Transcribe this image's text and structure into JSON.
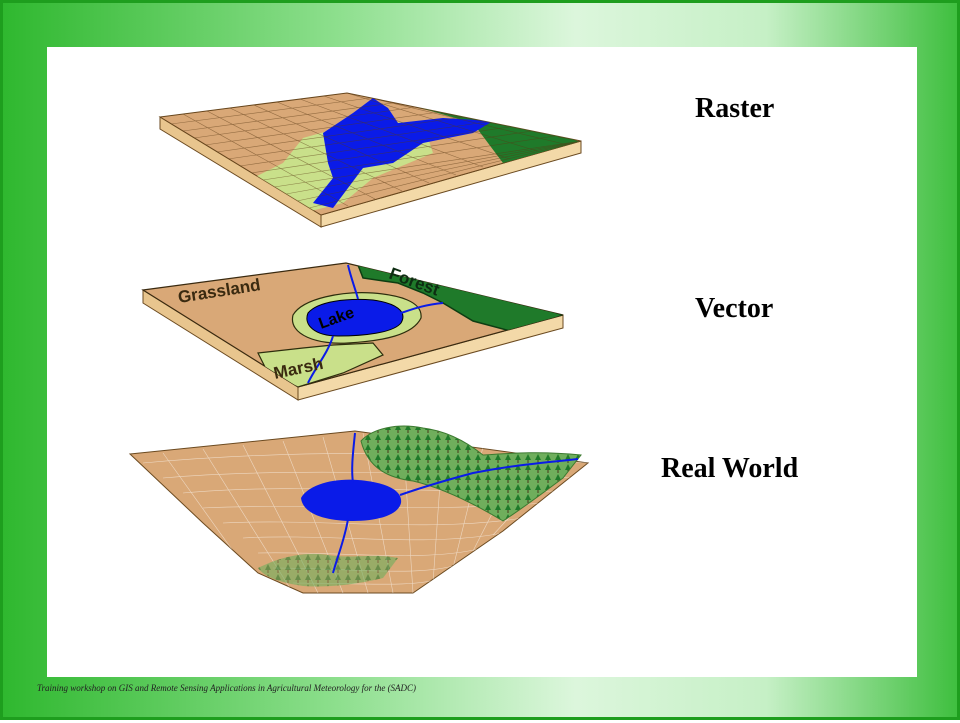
{
  "labels": {
    "raster": "Raster",
    "vector": "Vector",
    "real_world": "Real World"
  },
  "vector_layer": {
    "grassland": "Grassland",
    "forest": "Forest",
    "lake": "Lake",
    "marsh": "Marsh"
  },
  "footer": "Training workshop on GIS and Remote Sensing Applications in Agricultural Meteorology for the (SADC)",
  "colors": {
    "land": "#d9a877",
    "water": "#0a1be8",
    "forest": "#1f7a2a",
    "marsh": "#c9e08a",
    "border": "#2db52d"
  }
}
